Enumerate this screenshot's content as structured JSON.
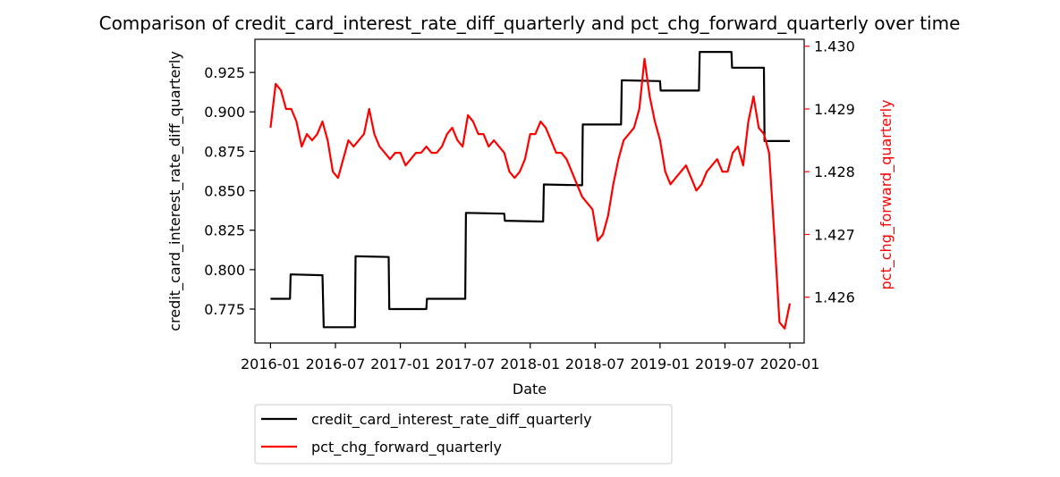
{
  "chart_data": {
    "type": "line",
    "title": "Comparison of credit_card_interest_rate_diff_quarterly and pct_chg_forward_quarterly over time",
    "xlabel": "Date",
    "ylabel_left": "credit_card_interest_rate_diff_quarterly",
    "ylabel_right": "pct_chg_forward_quarterly",
    "x_ticks": [
      "2016-01",
      "2016-07",
      "2017-01",
      "2017-07",
      "2018-01",
      "2018-07",
      "2019-01",
      "2019-07",
      "2020-01"
    ],
    "y_left_ticks": [
      "0.775",
      "0.800",
      "0.825",
      "0.850",
      "0.875",
      "0.900",
      "0.925"
    ],
    "y_right_ticks": [
      "1.426",
      "1.427",
      "1.428",
      "1.429",
      "1.430"
    ],
    "y_left_lim": [
      0.7535,
      0.946
    ],
    "y_right_lim": [
      1.42527,
      1.43011
    ],
    "x_lim": [
      2015.88,
      2020.11
    ],
    "colors": {
      "left_series": "#000000",
      "right_series": "#ff0000",
      "right_axis": "#ff0000"
    },
    "legend": {
      "placement": "below-left",
      "entries": [
        "credit_card_interest_rate_diff_quarterly",
        "pct_chg_forward_quarterly"
      ]
    },
    "series": [
      {
        "name": "credit_card_interest_rate_diff_quarterly",
        "axis": "left",
        "x": [
          2016.0,
          2016.15,
          2016.155,
          2016.4,
          2016.41,
          2016.65,
          2016.655,
          2016.91,
          2016.915,
          2017.2,
          2017.205,
          2017.5,
          2017.505,
          2017.8,
          2017.805,
          2018.1,
          2018.105,
          2018.4,
          2018.405,
          2018.7,
          2018.705,
          2019.0,
          2019.005,
          2019.3,
          2019.305,
          2019.55,
          2019.555,
          2019.8,
          2019.805,
          2020.0
        ],
        "y": [
          0.7815,
          0.7815,
          0.797,
          0.7965,
          0.7635,
          0.7635,
          0.8085,
          0.808,
          0.775,
          0.775,
          0.7815,
          0.7815,
          0.836,
          0.8355,
          0.831,
          0.8305,
          0.854,
          0.8535,
          0.892,
          0.892,
          0.92,
          0.9195,
          0.9135,
          0.9135,
          0.938,
          0.938,
          0.928,
          0.928,
          0.8815,
          0.8815
        ]
      },
      {
        "name": "pct_chg_forward_quarterly",
        "axis": "right",
        "x": [
          2016.0,
          2016.04,
          2016.08,
          2016.12,
          2016.16,
          2016.2,
          2016.24,
          2016.28,
          2016.32,
          2016.36,
          2016.4,
          2016.44,
          2016.48,
          2016.52,
          2016.56,
          2016.6,
          2016.64,
          2016.68,
          2016.72,
          2016.76,
          2016.8,
          2016.84,
          2016.88,
          2016.92,
          2016.96,
          2017.0,
          2017.04,
          2017.08,
          2017.12,
          2017.16,
          2017.2,
          2017.24,
          2017.28,
          2017.32,
          2017.36,
          2017.4,
          2017.44,
          2017.48,
          2017.52,
          2017.56,
          2017.6,
          2017.64,
          2017.68,
          2017.72,
          2017.76,
          2017.8,
          2017.84,
          2017.88,
          2017.92,
          2017.96,
          2018.0,
          2018.04,
          2018.08,
          2018.12,
          2018.16,
          2018.2,
          2018.24,
          2018.28,
          2018.32,
          2018.36,
          2018.4,
          2018.44,
          2018.48,
          2018.52,
          2018.56,
          2018.6,
          2018.64,
          2018.68,
          2018.72,
          2018.76,
          2018.8,
          2018.84,
          2018.88,
          2018.92,
          2018.96,
          2019.0,
          2019.04,
          2019.08,
          2019.12,
          2019.16,
          2019.2,
          2019.24,
          2019.28,
          2019.32,
          2019.36,
          2019.4,
          2019.44,
          2019.48,
          2019.52,
          2019.56,
          2019.6,
          2019.64,
          2019.68,
          2019.72,
          2019.76,
          2019.8,
          2019.84,
          2019.88,
          2019.92,
          2019.96,
          2020.0
        ],
        "y": [
          1.4287,
          1.4294,
          1.4293,
          1.429,
          1.429,
          1.4288,
          1.4284,
          1.4286,
          1.4285,
          1.4286,
          1.4288,
          1.4285,
          1.428,
          1.4279,
          1.4282,
          1.4285,
          1.4284,
          1.4285,
          1.4286,
          1.429,
          1.4286,
          1.4284,
          1.4283,
          1.4282,
          1.4283,
          1.4283,
          1.4281,
          1.4282,
          1.4283,
          1.4283,
          1.4284,
          1.4283,
          1.4283,
          1.4284,
          1.4286,
          1.4287,
          1.4285,
          1.4284,
          1.4289,
          1.4288,
          1.4286,
          1.4286,
          1.4284,
          1.4285,
          1.4284,
          1.4283,
          1.428,
          1.4279,
          1.428,
          1.4282,
          1.4286,
          1.4286,
          1.4288,
          1.4287,
          1.4285,
          1.4283,
          1.4283,
          1.4282,
          1.428,
          1.4278,
          1.4276,
          1.4275,
          1.4274,
          1.4269,
          1.427,
          1.4273,
          1.4278,
          1.4282,
          1.4285,
          1.4286,
          1.4287,
          1.429,
          1.4298,
          1.4292,
          1.4288,
          1.4285,
          1.428,
          1.4278,
          1.4279,
          1.428,
          1.4281,
          1.4279,
          1.4277,
          1.4278,
          1.428,
          1.4281,
          1.4282,
          1.428,
          1.428,
          1.4283,
          1.4284,
          1.4281,
          1.4288,
          1.4292,
          1.4287,
          1.4286,
          1.4283,
          1.427,
          1.4256,
          1.4255,
          1.4259
        ]
      }
    ]
  }
}
